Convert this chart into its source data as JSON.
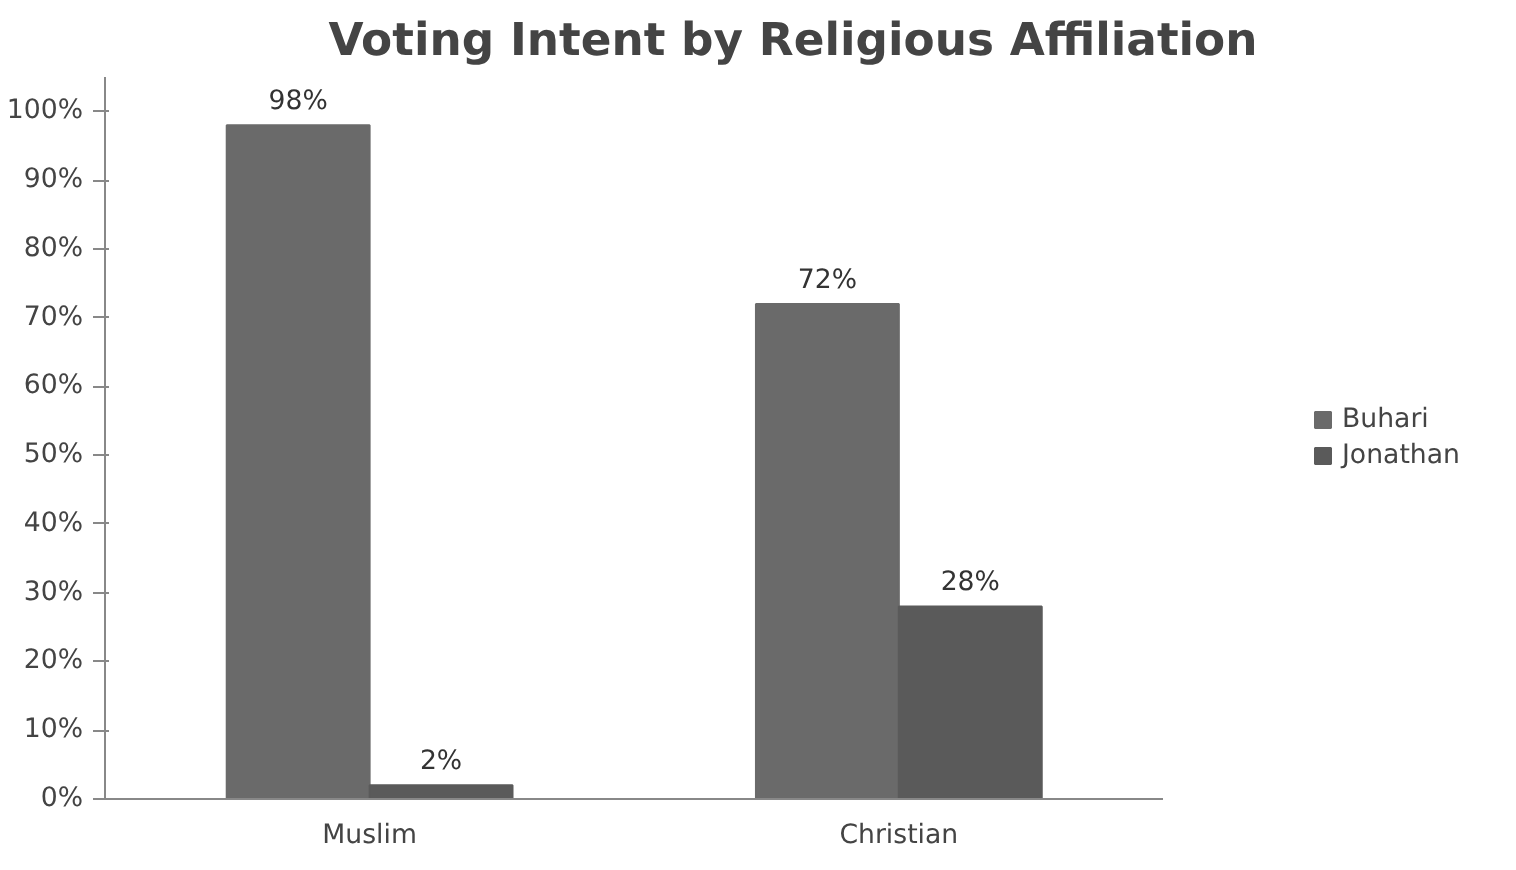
{
  "chart_data": {
    "type": "bar",
    "title": "Voting Intent by Religious Affiliation",
    "categories": [
      "Muslim",
      "Christian"
    ],
    "series": [
      {
        "name": "Buhari",
        "color": "#6a6a6a",
        "values": [
          98,
          72
        ],
        "value_labels": [
          "98%",
          "72%"
        ]
      },
      {
        "name": "Jonathan",
        "color": "#5a5a5a",
        "values": [
          2,
          28
        ],
        "value_labels": [
          "2%",
          "28%"
        ]
      }
    ],
    "ylim": [
      0,
      105
    ],
    "yticks": [
      {
        "value": 0,
        "label": "0%"
      },
      {
        "value": 10,
        "label": "10%"
      },
      {
        "value": 20,
        "label": "20%"
      },
      {
        "value": 30,
        "label": "30%"
      },
      {
        "value": 40,
        "label": "40%"
      },
      {
        "value": 50,
        "label": "50%"
      },
      {
        "value": 60,
        "label": "60%"
      },
      {
        "value": 70,
        "label": "70%"
      },
      {
        "value": 80,
        "label": "80%"
      },
      {
        "value": 90,
        "label": "90%"
      },
      {
        "value": 100,
        "label": "100%"
      }
    ],
    "grid": false,
    "legend": "right"
  }
}
